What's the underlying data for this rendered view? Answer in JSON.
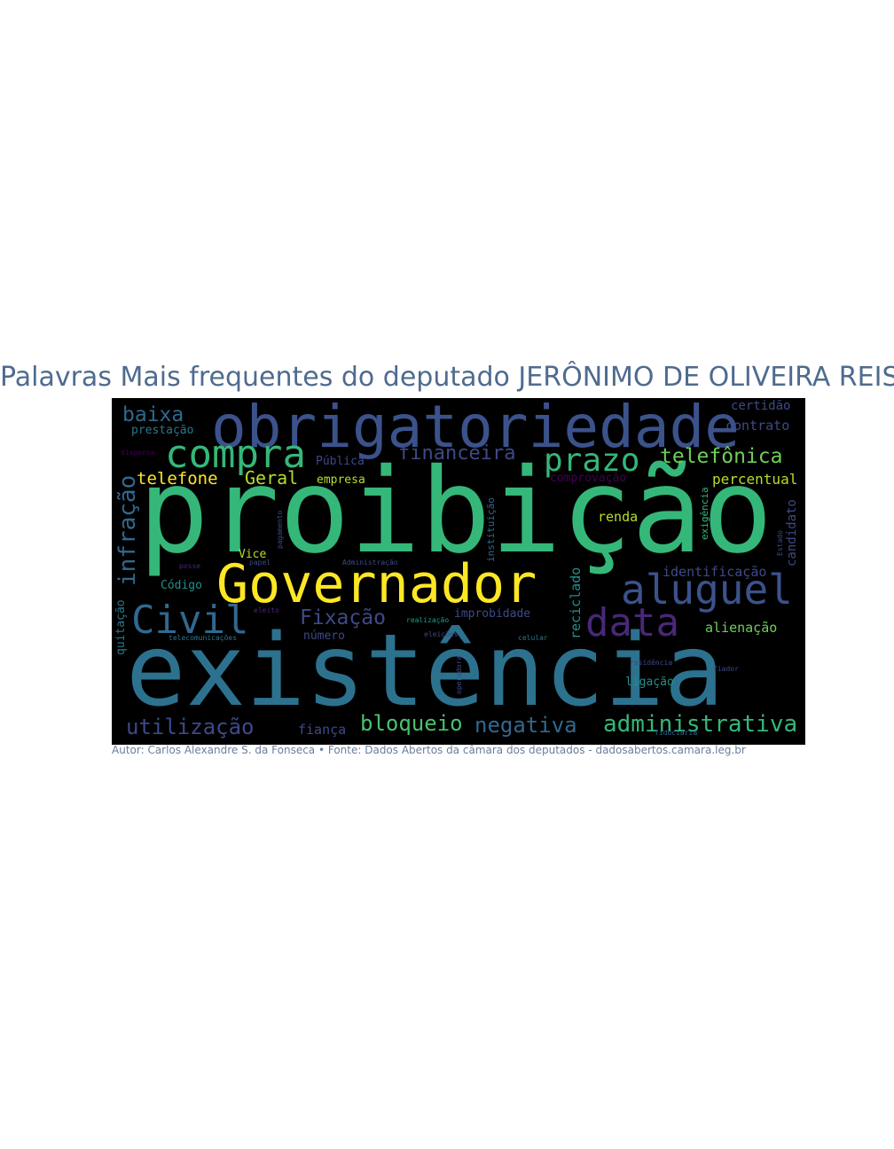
{
  "title": "Palavras Mais frequentes do deputado JERÔNIMO DE OLIVEIRA REIS",
  "caption": "Autor: Carlos Alexandre S. da Fonseca • Fonte: Dados Abertos da câmara dos deputados - dadosabertos.camara.leg.br",
  "words": [
    {
      "text": "proibição",
      "color": "#35b779"
    },
    {
      "text": "existência",
      "color": "#2c728e"
    },
    {
      "text": "obrigatoriedade",
      "color": "#3b528b"
    },
    {
      "text": "Governador",
      "color": "#fde725"
    },
    {
      "text": "aluguel",
      "color": "#3b528b"
    },
    {
      "text": "compra",
      "color": "#35b779"
    },
    {
      "text": "data",
      "color": "#482878"
    },
    {
      "text": "Civil",
      "color": "#31688e"
    },
    {
      "text": "prazo",
      "color": "#35b779"
    },
    {
      "text": "infração",
      "color": "#31688e"
    },
    {
      "text": "administrativa",
      "color": "#35b779"
    },
    {
      "text": "telefônica",
      "color": "#6ece58"
    },
    {
      "text": "bloqueio",
      "color": "#4ac16d"
    },
    {
      "text": "negativa",
      "color": "#31688e"
    },
    {
      "text": "utilização",
      "color": "#3e4989"
    },
    {
      "text": "financeira",
      "color": "#3e4989"
    },
    {
      "text": "Fixação",
      "color": "#3e4989"
    },
    {
      "text": "baixa",
      "color": "#31688e"
    },
    {
      "text": "telefone",
      "color": "#fde725"
    },
    {
      "text": "Geral",
      "color": "#b5de2b"
    },
    {
      "text": "percentual",
      "color": "#b5de2b"
    },
    {
      "text": "identificação",
      "color": "#3e4989"
    },
    {
      "text": "alienação",
      "color": "#6ece58"
    },
    {
      "text": "reciclado",
      "color": "#21918c"
    },
    {
      "text": "renda",
      "color": "#b5de2b"
    },
    {
      "text": "ligação",
      "color": "#21918c"
    },
    {
      "text": "improbidade",
      "color": "#3e4989"
    },
    {
      "text": "número",
      "color": "#3e4989"
    },
    {
      "text": "fiança",
      "color": "#3e4989"
    },
    {
      "text": "certidão",
      "color": "#3e4989"
    },
    {
      "text": "contrato",
      "color": "#3e4989"
    },
    {
      "text": "prestação",
      "color": "#2a788e"
    },
    {
      "text": "Pública",
      "color": "#3e4989"
    },
    {
      "text": "empresa",
      "color": "#b5de2b"
    },
    {
      "text": "comprovação",
      "color": "#440154"
    },
    {
      "text": "Código",
      "color": "#21918c"
    },
    {
      "text": "Vice",
      "color": "#b5de2b"
    },
    {
      "text": "quitação",
      "color": "#2a788e"
    },
    {
      "text": "instituição",
      "color": "#31688e"
    },
    {
      "text": "exigência",
      "color": "#35b779"
    },
    {
      "text": "candidato",
      "color": "#3e4989"
    },
    {
      "text": "telecomunicações",
      "color": "#2a788e"
    },
    {
      "text": "papel",
      "color": "#3e4989"
    },
    {
      "text": "Administração",
      "color": "#3e4989"
    },
    {
      "text": "realização",
      "color": "#1f9e89"
    },
    {
      "text": "eleições",
      "color": "#3e4989"
    },
    {
      "text": "celular",
      "color": "#2a788e"
    },
    {
      "text": "residência",
      "color": "#3e4989"
    },
    {
      "text": "fiador",
      "color": "#3e4989"
    },
    {
      "text": "fiduciária",
      "color": "#31688e"
    },
    {
      "text": "operadora",
      "color": "#3e4989"
    },
    {
      "text": "eleito",
      "color": "#482878"
    },
    {
      "text": "pagamento",
      "color": "#3e4989"
    },
    {
      "text": "dispensa",
      "color": "#440154"
    },
    {
      "text": "posse",
      "color": "#482878"
    },
    {
      "text": "Estado",
      "color": "#3e4989"
    }
  ]
}
